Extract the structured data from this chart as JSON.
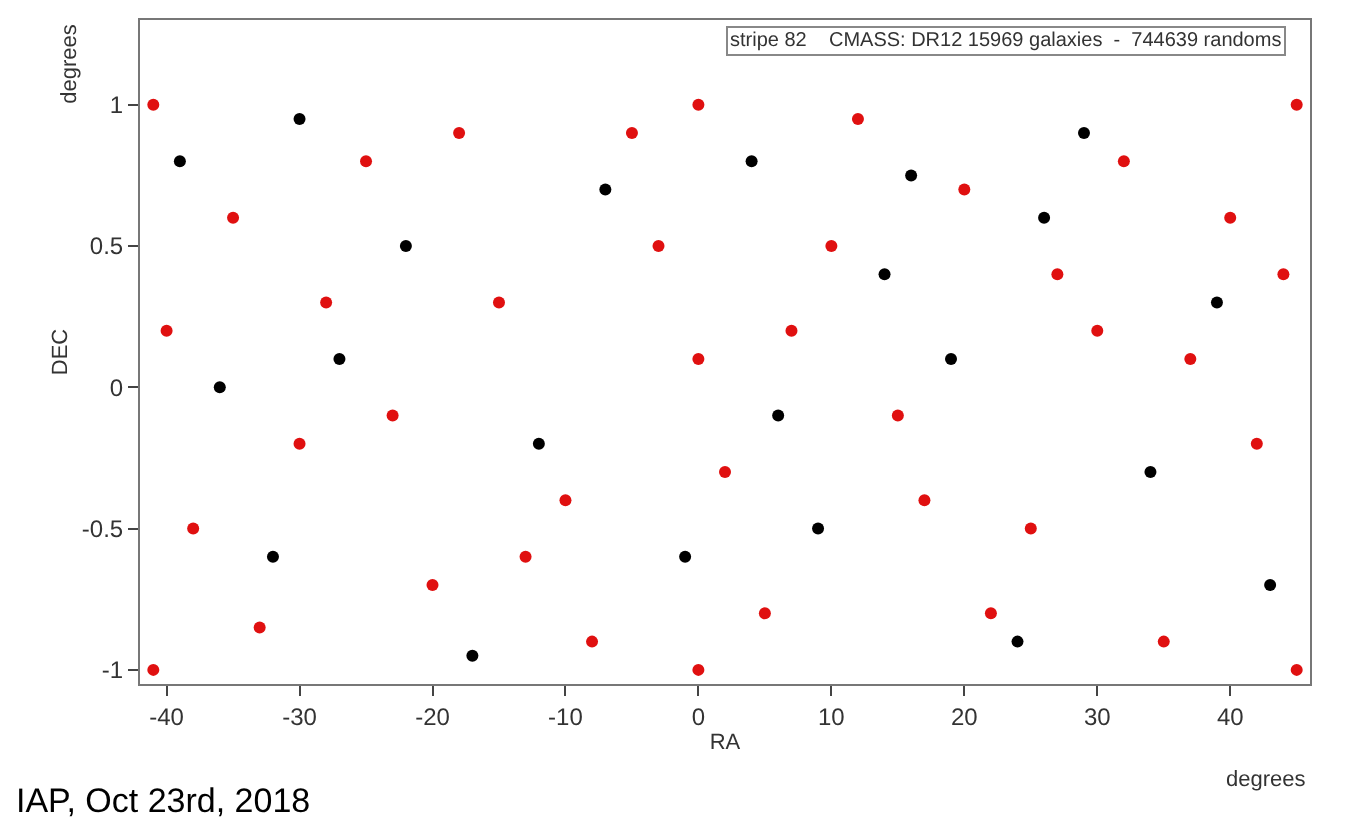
{
  "chart_data": {
    "type": "scatter",
    "xlabel": "RA",
    "ylabel": "DEC",
    "xlim": [
      -42,
      46
    ],
    "ylim": [
      -1.05,
      1.3
    ],
    "xticks": [
      -40,
      -30,
      -20,
      -10,
      0,
      10,
      20,
      30,
      40
    ],
    "yticks": [
      -1,
      -0.5,
      0,
      0.5,
      1
    ],
    "marker": "circle",
    "series": [
      {
        "color": "#000000",
        "x": [
          -39,
          -32,
          -27,
          -22,
          -12,
          -7,
          -1,
          4,
          9,
          14,
          19,
          24,
          29,
          34,
          39,
          43,
          -36,
          -17,
          16,
          -30,
          6,
          26
        ],
        "values": [
          0.8,
          -0.6,
          0.1,
          0.5,
          -0.2,
          0.7,
          -0.6,
          0.8,
          -0.5,
          0.4,
          0.1,
          -0.9,
          0.9,
          -0.3,
          0.3,
          -0.7,
          0,
          -0.95,
          0.75,
          0.95,
          -0.1,
          0.6
        ]
      },
      {
        "color": "#e01010",
        "x": [
          -41,
          -41,
          45,
          45,
          -35,
          -30,
          -25,
          -20,
          -15,
          -10,
          -5,
          0,
          5,
          10,
          15,
          20,
          25,
          30,
          35,
          40,
          -38,
          -28,
          -18,
          -8,
          2,
          12,
          22,
          32,
          42,
          -33,
          -23,
          -13,
          -3,
          7,
          17,
          27,
          37,
          -40,
          44,
          0,
          0
        ],
        "values": [
          1,
          -1,
          1,
          -1,
          0.6,
          -0.2,
          0.8,
          -0.7,
          0.3,
          -0.4,
          0.9,
          0.1,
          -0.8,
          0.5,
          -0.1,
          0.7,
          -0.5,
          0.2,
          -0.9,
          0.6,
          -0.5,
          0.3,
          0.9,
          -0.9,
          -0.3,
          0.95,
          -0.8,
          0.8,
          -0.2,
          -0.85,
          -0.1,
          -0.6,
          0.5,
          0.2,
          -0.4,
          0.4,
          0.1,
          0.2,
          0.4,
          -1,
          1
        ]
      }
    ],
    "annotations": [
      "stripe 82    CMASS: DR12 15969 galaxies  -  744639 randoms",
      "degrees",
      "degrees",
      "IAP, Oct 23rd, 2018"
    ]
  }
}
